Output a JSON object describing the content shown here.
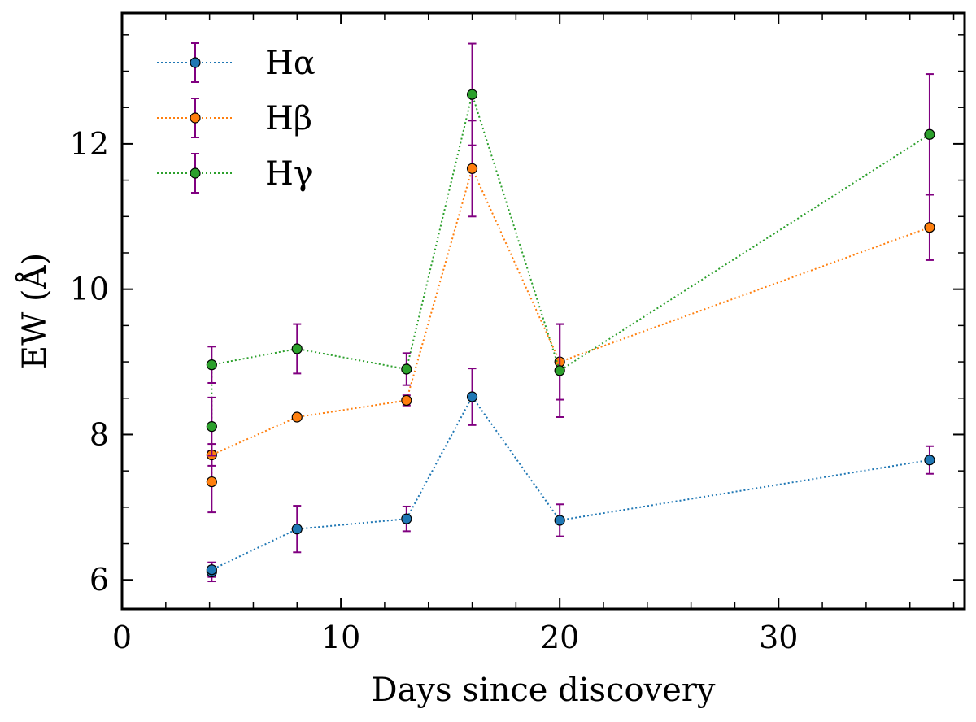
{
  "chart_data": {
    "type": "scatter",
    "xlabel": "Days since discovery",
    "ylabel": "EW (Å)",
    "xlim": [
      0,
      38.5
    ],
    "ylim": [
      5.6,
      13.8
    ],
    "xticks": [
      0,
      10,
      20,
      30
    ],
    "yticks": [
      6,
      8,
      10,
      12
    ],
    "grid": false,
    "legend_position": "top-left",
    "errorbar_color": "#800080",
    "series": [
      {
        "name": "Hα",
        "color": "#1f77b4",
        "x": [
          4.1,
          4.1,
          8.0,
          13.0,
          16.0,
          20.0,
          36.9
        ],
        "y": [
          6.11,
          6.14,
          6.7,
          6.84,
          8.52,
          6.82,
          7.65
        ],
        "err": [
          0.13,
          0.1,
          0.32,
          0.17,
          0.39,
          0.22,
          0.19
        ]
      },
      {
        "name": "Hβ",
        "color": "#ff7f0e",
        "x": [
          4.1,
          4.1,
          8.0,
          13.0,
          16.0,
          20.0,
          36.9
        ],
        "y": [
          7.35,
          7.72,
          8.24,
          8.47,
          11.66,
          9.0,
          10.85
        ],
        "err": [
          0.42,
          0.15,
          0.0,
          0.07,
          0.66,
          0.52,
          0.45
        ]
      },
      {
        "name": "Hγ",
        "color": "#2ca02c",
        "x": [
          4.1,
          4.1,
          8.0,
          13.0,
          16.0,
          20.0,
          36.9
        ],
        "y": [
          8.11,
          8.96,
          9.18,
          8.9,
          12.68,
          8.88,
          12.13
        ],
        "err": [
          0.4,
          0.25,
          0.34,
          0.22,
          0.7,
          0.64,
          0.83
        ]
      }
    ]
  }
}
